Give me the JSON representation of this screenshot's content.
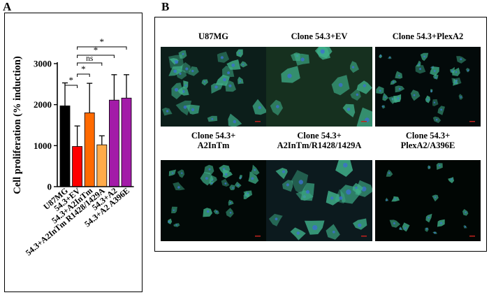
{
  "panels": {
    "a_label": "A",
    "b_label": "B"
  },
  "chart_data": {
    "type": "bar",
    "ylabel": "Cell proliferation (% induction)",
    "xlabel": "",
    "ylim": [
      0,
      3000
    ],
    "yticks": [
      0,
      1000,
      2000,
      3000
    ],
    "categories": [
      "U87MG",
      "54.3+EV",
      "54.3+A2InTm",
      "54.3+A2InTm R1428/1429A",
      "54.3+A2",
      "54.3+A2 A396E"
    ],
    "values": [
      1970,
      980,
      1800,
      1020,
      2110,
      2160
    ],
    "errors": [
      560,
      500,
      720,
      220,
      620,
      570
    ],
    "colors": [
      "#000000",
      "#ff0000",
      "#ff6a00",
      "#ffab4a",
      "#a31ba8",
      "#a31ba8"
    ],
    "significance": [
      {
        "from": 0,
        "to": 1,
        "label": "*"
      },
      {
        "from": 1,
        "to": 2,
        "label": "*"
      },
      {
        "from": 1,
        "to": 3,
        "label": "ns"
      },
      {
        "from": 1,
        "to": 4,
        "label": "*"
      },
      {
        "from": 1,
        "to": 5,
        "label": "*"
      }
    ],
    "grid": false,
    "legend": "none"
  },
  "microscopy": {
    "captions": [
      [
        "U87MG"
      ],
      [
        "Clone 54.3+EV"
      ],
      [
        "Clone 54.3+PlexA2"
      ],
      [
        "Clone 54.3+",
        "A2InTm"
      ],
      [
        "Clone 54.3+",
        "A2InTm/R1428/1429A"
      ],
      [
        "Clone 54.3+",
        "PlexA2/A396E"
      ]
    ],
    "image_names": [
      "u87mg-micrograph",
      "clone-54-3-ev-micrograph",
      "clone-54-3-plexa2-micrograph",
      "clone-54-3-a2intm-micrograph",
      "clone-54-3-a2intm-r1428-1429a-micrograph",
      "clone-54-3-plexa2-a396e-micrograph"
    ],
    "colors": {
      "background_tint": [
        "#0c1e1a",
        "#16301f",
        "#030a0a",
        "#020907",
        "#0c1a1e",
        "#010604"
      ],
      "cell": "#3fb08a",
      "nucleus": "#3c6fcf"
    }
  }
}
